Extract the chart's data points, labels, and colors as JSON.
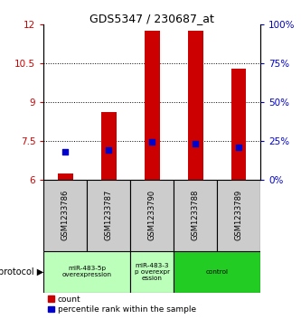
{
  "title": "GDS5347 / 230687_at",
  "samples": [
    "GSM1233786",
    "GSM1233787",
    "GSM1233790",
    "GSM1233788",
    "GSM1233789"
  ],
  "count_values": [
    6.22,
    8.6,
    11.75,
    11.75,
    10.3
  ],
  "percentile_values": [
    18,
    19,
    24,
    23,
    21
  ],
  "ylim_left": [
    6,
    12
  ],
  "ylim_right": [
    0,
    100
  ],
  "yticks_left": [
    6,
    7.5,
    9,
    10.5,
    12
  ],
  "yticks_right": [
    0,
    25,
    50,
    75,
    100
  ],
  "bar_color": "#cc0000",
  "percentile_color": "#0000cc",
  "bar_bottom": 6.0,
  "group_configs": [
    {
      "xstart": -0.5,
      "xend": 1.5,
      "label": "miR-483-5p\noverexpression",
      "color": "#bbffbb"
    },
    {
      "xstart": 1.5,
      "xend": 2.5,
      "label": "miR-483-3\np overexpr\nession",
      "color": "#bbffbb"
    },
    {
      "xstart": 2.5,
      "xend": 4.5,
      "label": "control",
      "color": "#22cc22"
    }
  ],
  "protocol_label": "protocol",
  "legend_count_label": "count",
  "legend_percentile_label": "percentile rank within the sample",
  "sample_box_color": "#cccccc",
  "background_color": "#ffffff",
  "left_label_color": "#cc0000",
  "right_label_color": "#0000cc",
  "bar_width": 0.35
}
